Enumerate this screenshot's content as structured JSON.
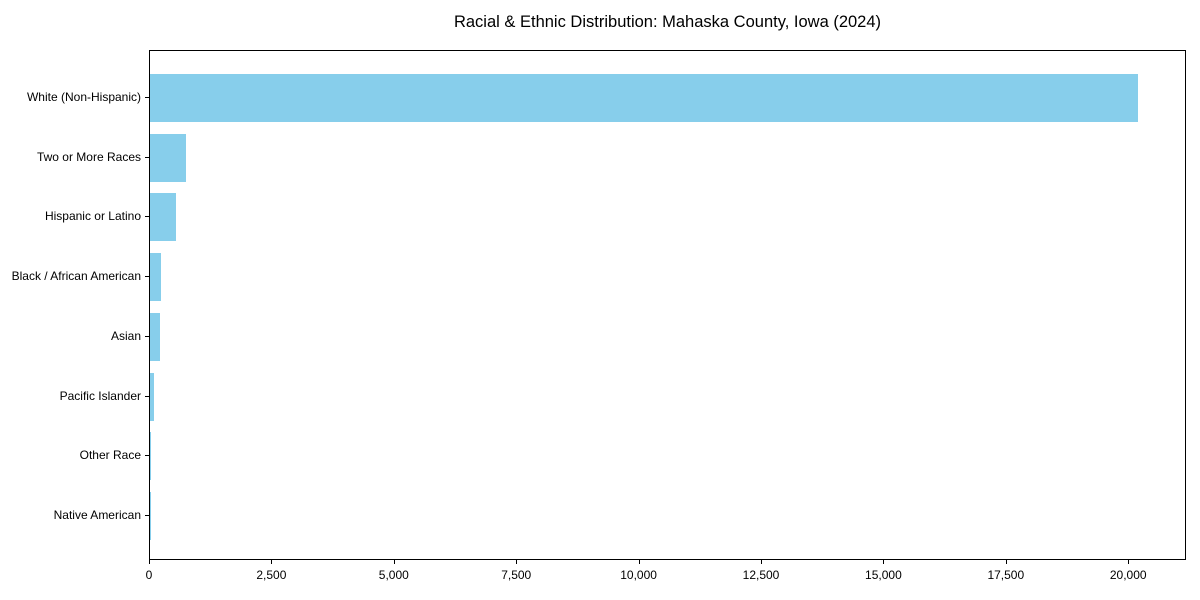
{
  "chart_data": {
    "type": "bar",
    "orientation": "horizontal",
    "title": "Racial & Ethnic Distribution: Mahaska County, Iowa (2024)",
    "xlabel": "",
    "ylabel": "",
    "categories": [
      "White (Non-Hispanic)",
      "Two or More Races",
      "Hispanic or Latino",
      "Black / African American",
      "Asian",
      "Pacific Islander",
      "Other Race",
      "Native American"
    ],
    "values": [
      20170,
      730,
      540,
      225,
      210,
      80,
      15,
      10
    ],
    "xlim": [
      0,
      21180
    ],
    "x_ticks": [
      0,
      2500,
      5000,
      7500,
      10000,
      12500,
      15000,
      17500,
      20000
    ],
    "x_tick_labels": [
      "0",
      "2,500",
      "5,000",
      "7,500",
      "10,000",
      "12,500",
      "15,000",
      "17,500",
      "20,000"
    ],
    "bar_color": "#87CEEB",
    "grid": false,
    "legend": false
  }
}
